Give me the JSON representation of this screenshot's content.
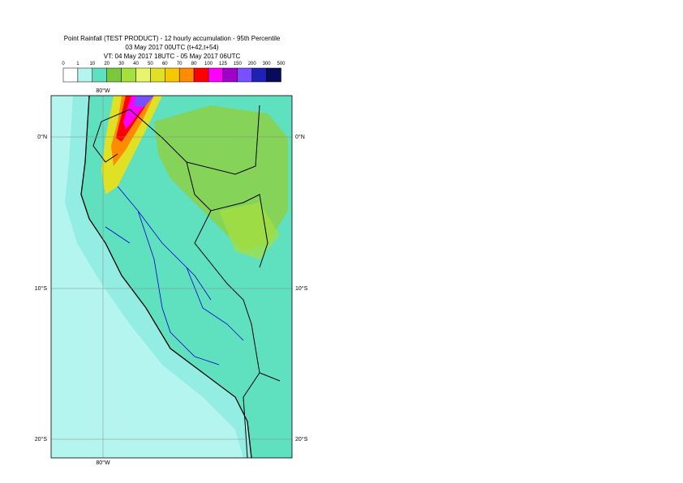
{
  "header": {
    "title": "Point Rainfall (TEST PRODUCT) - 12 hourly accumulation - 95th Percentile",
    "issued": "03 May 2017 00UTC (t+42,t+54)",
    "valid": "VT: 04 May 2017 18UTC - 05 May 2017 06UTC"
  },
  "legend": {
    "labels": [
      "0",
      "1",
      "10",
      "20",
      "30",
      "40",
      "50",
      "60",
      "70",
      "80",
      "100",
      "125",
      "150",
      "200",
      "300",
      "500"
    ],
    "colors": [
      "#ffffff",
      "#b4f5f0",
      "#5fe0bf",
      "#7cc83c",
      "#a6e03c",
      "#e8f56a",
      "#e0e024",
      "#f5c800",
      "#ff8c00",
      "#ff0000",
      "#ff00ff",
      "#a000c8",
      "#7850ff",
      "#2020b4",
      "#0a0a5a"
    ]
  },
  "map": {
    "lon_top": "80°W",
    "lon_bottom": "80°W",
    "lat_left": [
      "0°N",
      "10°S",
      "20°S"
    ],
    "lat_right": [
      "0°N",
      "10°S",
      "20°S"
    ]
  }
}
